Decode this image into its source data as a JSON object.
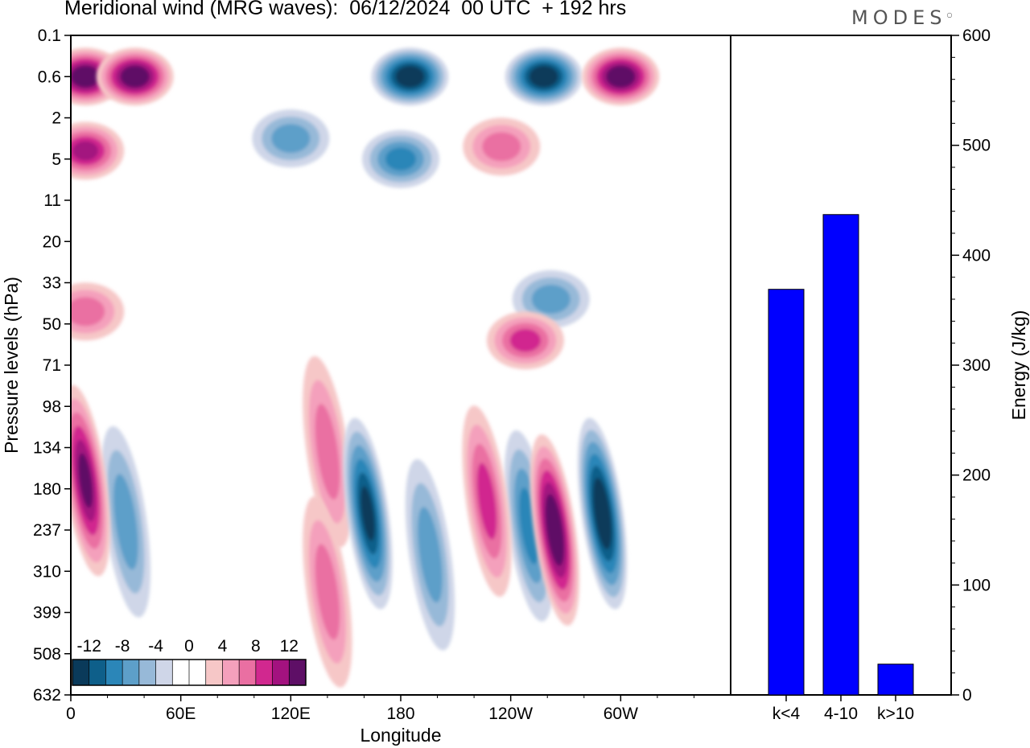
{
  "header": {
    "title": "Meridional wind (MRG waves):  06/12/2024  00 UTC  + 192 hrs",
    "logo": "MODES"
  },
  "chart_data": [
    {
      "type": "heatmap",
      "xlabel": "Longitude",
      "ylabel": "Pressure levels (hPa)",
      "x_ticks": [
        "0",
        "60E",
        "120E",
        "180",
        "120W",
        "60W"
      ],
      "y_ticks": [
        "0.1",
        "0.6",
        "2",
        "5",
        "11",
        "20",
        "33",
        "50",
        "71",
        "98",
        "134",
        "180",
        "237",
        "310",
        "399",
        "508",
        "632"
      ],
      "colorbar": {
        "labels": [
          "-12",
          "-8",
          "-4",
          "0",
          "4",
          "8",
          "12"
        ],
        "colors": [
          "#0a3a5a",
          "#0e5f8a",
          "#2b86b8",
          "#5d9fc9",
          "#97b9d8",
          "#cfd6e8",
          "#ffffff",
          "#ffffff",
          "#f6c7c7",
          "#f4a0bc",
          "#ea6fa2",
          "#d1288f",
          "#a3127f",
          "#5e0f66"
        ]
      },
      "features": [
        {
          "x": 8,
          "y": 1,
          "v": 14
        },
        {
          "x": 35,
          "y": 1,
          "v": 14
        },
        {
          "x": 185,
          "y": 1,
          "v": -14
        },
        {
          "x": 258,
          "y": 1,
          "v": -14
        },
        {
          "x": 300,
          "y": 1,
          "v": 14
        },
        {
          "x": 120,
          "y": 2.5,
          "v": -6
        },
        {
          "x": 8,
          "y": 2.8,
          "v": 9
        },
        {
          "x": 180,
          "y": 3,
          "v": -8
        },
        {
          "x": 235,
          "y": 2.7,
          "v": 5
        },
        {
          "x": 8,
          "y": 6.7,
          "v": 6
        },
        {
          "x": 248,
          "y": 7.4,
          "v": 8
        },
        {
          "x": 262,
          "y": 6.4,
          "v": -6
        },
        {
          "x": 8,
          "y": 10.8,
          "v": 11
        },
        {
          "x": 30,
          "y": 11.8,
          "v": -6
        },
        {
          "x": 140,
          "y": 10.1,
          "v": 6
        },
        {
          "x": 162,
          "y": 11.6,
          "v": -11
        },
        {
          "x": 250,
          "y": 11.9,
          "v": -7
        },
        {
          "x": 264,
          "y": 12,
          "v": 14
        },
        {
          "x": 290,
          "y": 11.6,
          "v": -14
        },
        {
          "x": 227,
          "y": 11.3,
          "v": 8
        },
        {
          "x": 196,
          "y": 12.6,
          "v": -6
        },
        {
          "x": 140,
          "y": 13.5,
          "v": 6
        }
      ]
    },
    {
      "type": "bar",
      "categories": [
        "k<4",
        "4-10",
        "k>10"
      ],
      "values": [
        369,
        437,
        28
      ],
      "ylabel": "Energy (J/kg)",
      "ylim": [
        0,
        600
      ],
      "y_ticks": [
        0,
        100,
        200,
        300,
        400,
        500,
        600
      ],
      "bar_color": "#0000ff"
    }
  ]
}
